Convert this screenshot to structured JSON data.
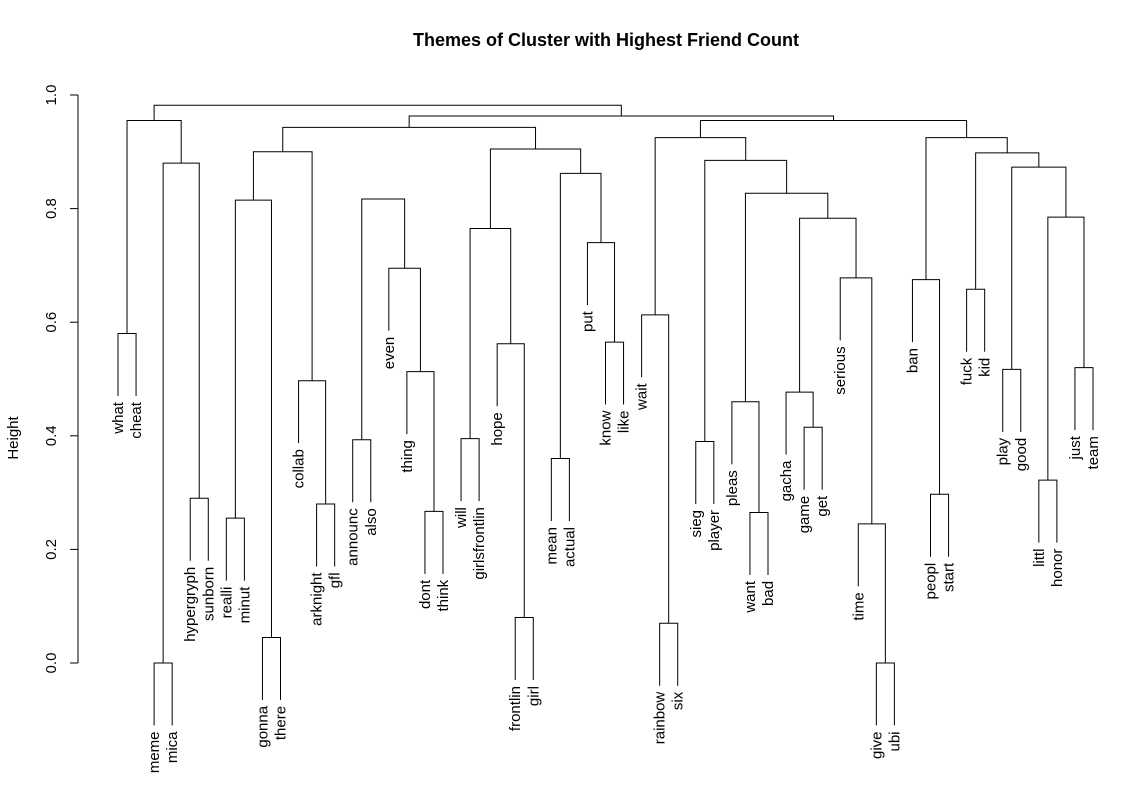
{
  "chart_data": {
    "type": "dendrogram",
    "title": "Themes of Cluster with Highest Friend Count",
    "ylabel": "Height",
    "xlabel": "",
    "ylim": [
      0,
      1.0
    ],
    "yticks": [
      {
        "value": 0.0,
        "label": "0.0"
      },
      {
        "value": 0.2,
        "label": "0.2"
      },
      {
        "value": 0.4,
        "label": "0.4"
      },
      {
        "value": 0.6,
        "label": "0.6"
      },
      {
        "value": 0.8,
        "label": "0.8"
      },
      {
        "value": 1.0,
        "label": "1.0"
      }
    ],
    "leaves": [
      "what",
      "cheat",
      "meme",
      "mica",
      "hypergryph",
      "sunborn",
      "realli",
      "minut",
      "gonna",
      "there",
      "collab",
      "arknight",
      "gfl",
      "announc",
      "also",
      "even",
      "thing",
      "dont",
      "think",
      "will",
      "girlsfrontlin",
      "hope",
      "frontlin",
      "girl",
      "mean",
      "actual",
      "put",
      "know",
      "like",
      "wait",
      "rainbow",
      "six",
      "sieg",
      "player",
      "pleas",
      "want",
      "bad",
      "gacha",
      "game",
      "get",
      "serious",
      "time",
      "give",
      "ubi",
      "ban",
      "peopl",
      "start",
      "fuck",
      "kid",
      "play",
      "good",
      "littl",
      "honor",
      "just",
      "team"
    ],
    "merges": [
      [
        "what",
        "cheat",
        0.58
      ],
      [
        "meme",
        "mica",
        0.0
      ],
      [
        "hypergryph",
        "sunborn",
        0.29
      ],
      [
        "realli",
        "minut",
        0.255
      ],
      [
        "gonna",
        "there",
        0.045
      ],
      [
        "arknight",
        "gfl",
        0.28
      ],
      [
        "announc",
        "also",
        0.393
      ],
      [
        "dont",
        "think",
        0.267
      ],
      [
        "will",
        "girlsfrontlin",
        0.395
      ],
      [
        "frontlin",
        "girl",
        0.08
      ],
      [
        "mean",
        "actual",
        0.36
      ],
      [
        "know",
        "like",
        0.565
      ],
      [
        "rainbow",
        "six",
        0.07
      ],
      [
        "sieg",
        "player",
        0.39
      ],
      [
        "want",
        "bad",
        0.265
      ],
      [
        "game",
        "get",
        0.415
      ],
      [
        "give",
        "ubi",
        0.0
      ],
      [
        "peopl",
        "start",
        0.297
      ],
      [
        "fuck",
        "kid",
        0.658
      ],
      [
        "play",
        "good",
        0.517
      ],
      [
        "littl",
        "honor",
        0.322
      ],
      [
        "just",
        "team",
        0.52
      ],
      [
        "{meme,mica}",
        "{hypergryph,sunborn}",
        0.88
      ],
      [
        "{what,cheat}",
        "{meme..sunborn}",
        0.955
      ],
      [
        "{realli,minut}",
        "{gonna,there}",
        0.815
      ],
      [
        "collab",
        "{arknight,gfl}",
        0.497
      ],
      [
        "thing",
        "{dont,think}",
        0.513
      ],
      [
        "even",
        "{thing,dont,think}",
        0.695
      ],
      [
        "{announc,also}",
        "{even..think}",
        0.817
      ],
      [
        "{realli..there}",
        "{collab..gfl}",
        0.9
      ],
      [
        "hope",
        "{frontlin,girl}",
        0.562
      ],
      [
        "{will,girlsfrontlin}",
        "{hope,frontlin,girl}",
        0.765
      ],
      [
        "put",
        "{know,like}",
        0.74
      ],
      [
        "{mean,actual}",
        "{put,know,like}",
        0.862
      ],
      [
        "{will..girl}",
        "{mean..like}",
        0.905
      ],
      [
        "{realli..also}",
        "{will..like}",
        0.943
      ],
      [
        "{realli..like}",
        "{announc..think}",
        0.948
      ],
      [
        "wait",
        "{rainbow,six}",
        0.613
      ],
      [
        "pleas",
        "{want,bad}",
        0.46
      ],
      [
        "gacha",
        "{game,get}",
        0.477
      ],
      [
        "time",
        "{give,ubi}",
        0.245
      ],
      [
        "serious",
        "{time,give,ubi}",
        0.678
      ],
      [
        "{gacha,game,get}",
        "{serious..ubi}",
        0.783
      ],
      [
        "{pleas,want,bad}",
        "{gacha..ubi}",
        0.827
      ],
      [
        "{sieg,player}",
        "{pleas..ubi}",
        0.885
      ],
      [
        "{wait,rainbow,six}",
        "{sieg..ubi}",
        0.925
      ],
      [
        "ban",
        "{peopl,start}",
        0.675
      ],
      [
        "{littl,honor}",
        "{just,team}",
        0.785
      ],
      [
        "{play,good}",
        "{littl..team}",
        0.873
      ],
      [
        "{fuck,kid}",
        "{play..team}",
        0.898
      ],
      [
        "{ban,peopl,start}",
        "{fuck..team}",
        0.925
      ],
      [
        "{wait..ubi}",
        "{ban..team}",
        0.955
      ],
      [
        "{realli..think}",
        "{wait..team}",
        0.963
      ],
      [
        "{what..sunborn}",
        "{realli..team}",
        0.982
      ]
    ]
  }
}
